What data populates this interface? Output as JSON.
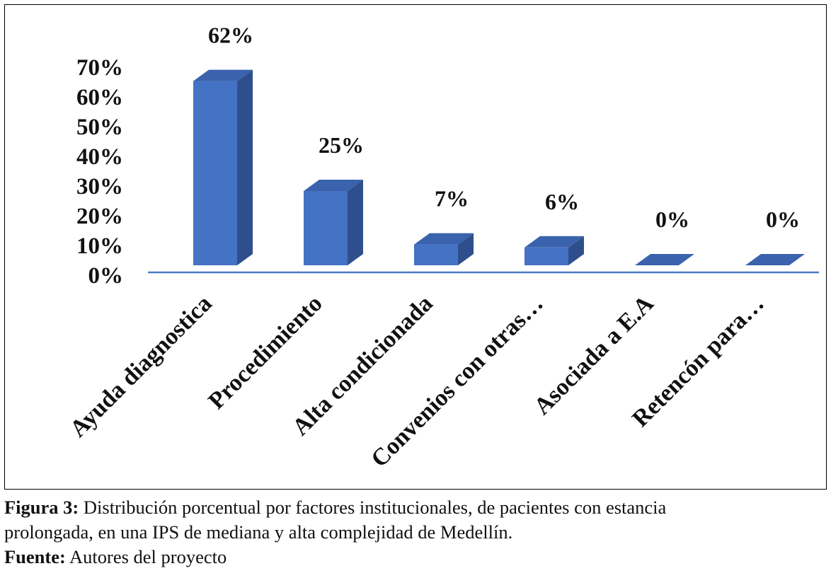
{
  "chart_data": {
    "type": "bar",
    "categories": [
      "Ayuda diagnostica",
      "Procedimiento",
      "Alta condicionada",
      "Convenios con otras…",
      "Asociada a E.A",
      "Retencón para…"
    ],
    "values": [
      62,
      25,
      7,
      6,
      0,
      0
    ],
    "data_labels": [
      "62%",
      "25%",
      "7%",
      "6%",
      "0%",
      "0%"
    ],
    "y_ticks": [
      "0%",
      "10%",
      "20%",
      "30%",
      "40%",
      "50%",
      "60%",
      "70%"
    ],
    "ylim": [
      0,
      70
    ],
    "grid": false,
    "legend": "none",
    "colors": {
      "bar_front": "#4472c4",
      "bar_side": "#2f4f8c",
      "bar_top": "#3a62ad",
      "axis": "#4a7cc4"
    }
  },
  "caption": {
    "figure_label": "Figura 3:",
    "figure_text": "Distribución porcentual por factores institucionales, de pacientes con estancia",
    "figure_text_line2": "prolongada, en una IPS de mediana y alta complejidad de Medellín.",
    "source_label": "Fuente:",
    "source_text": "Autores del proyecto"
  }
}
